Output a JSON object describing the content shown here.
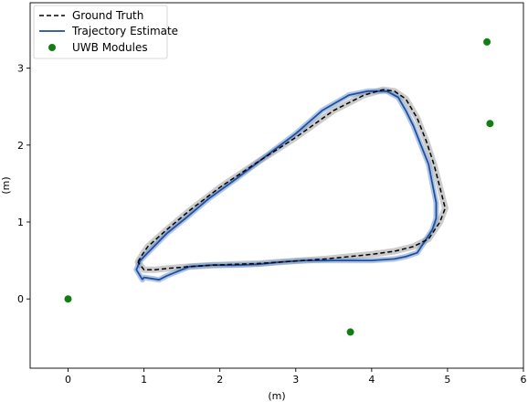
{
  "chart_data": {
    "type": "line",
    "xlabel": "(m)",
    "ylabel": "(m)",
    "xlim": [
      -0.5,
      6
    ],
    "ylim": [
      -0.9,
      3.85
    ],
    "xticks": [
      0,
      1,
      2,
      3,
      4,
      5,
      6
    ],
    "yticks": [
      0,
      1,
      2,
      3
    ],
    "grid": false,
    "legend_position": "top-left",
    "series": [
      {
        "name": "Ground Truth",
        "style": "dashed",
        "color": "#000000",
        "x": [
          0.92,
          0.98,
          1.05,
          1.3,
          1.6,
          2.0,
          2.5,
          3.0,
          3.5,
          3.9,
          4.15,
          4.3,
          4.45,
          4.6,
          4.72,
          4.82,
          4.9,
          4.95,
          4.97,
          4.9,
          4.75,
          4.55,
          4.3,
          4.0,
          3.7,
          3.4,
          3.1,
          2.8,
          2.5,
          2.2,
          1.9,
          1.6,
          1.35,
          1.15,
          1.0,
          0.92
        ],
        "y": [
          0.48,
          0.58,
          0.68,
          0.9,
          1.15,
          1.45,
          1.78,
          2.1,
          2.45,
          2.65,
          2.72,
          2.7,
          2.6,
          2.35,
          2.05,
          1.75,
          1.45,
          1.25,
          1.18,
          1.0,
          0.78,
          0.68,
          0.62,
          0.58,
          0.55,
          0.52,
          0.5,
          0.48,
          0.46,
          0.45,
          0.44,
          0.42,
          0.4,
          0.38,
          0.38,
          0.48
        ]
      },
      {
        "name": "Trajectory Estimate",
        "style": "solid",
        "color": "#1f4e9c",
        "x": [
          0.98,
          0.9,
          0.95,
          1.1,
          1.3,
          1.55,
          1.85,
          2.2,
          2.6,
          3.0,
          3.35,
          3.7,
          3.95,
          4.2,
          4.35,
          4.45,
          4.55,
          4.65,
          4.75,
          4.8,
          4.85,
          4.85,
          4.8,
          4.7,
          4.6,
          4.45,
          4.3,
          4.0,
          3.7,
          3.4,
          3.1,
          2.8,
          2.5,
          2.2,
          1.9,
          1.6,
          1.3,
          1.2,
          1.0,
          0.98
        ],
        "y": [
          0.25,
          0.38,
          0.5,
          0.65,
          0.85,
          1.05,
          1.3,
          1.55,
          1.85,
          2.15,
          2.45,
          2.65,
          2.7,
          2.7,
          2.62,
          2.45,
          2.25,
          2.0,
          1.75,
          1.5,
          1.25,
          1.05,
          0.9,
          0.75,
          0.6,
          0.55,
          0.52,
          0.5,
          0.5,
          0.5,
          0.5,
          0.48,
          0.45,
          0.44,
          0.44,
          0.42,
          0.3,
          0.25,
          0.28,
          0.25
        ]
      },
      {
        "name": "UWB Modules",
        "style": "markers",
        "color": "#0f7f12",
        "x": [
          0.0,
          3.72,
          5.52,
          5.56
        ],
        "y": [
          0.0,
          -0.43,
          3.34,
          2.28
        ]
      }
    ]
  }
}
